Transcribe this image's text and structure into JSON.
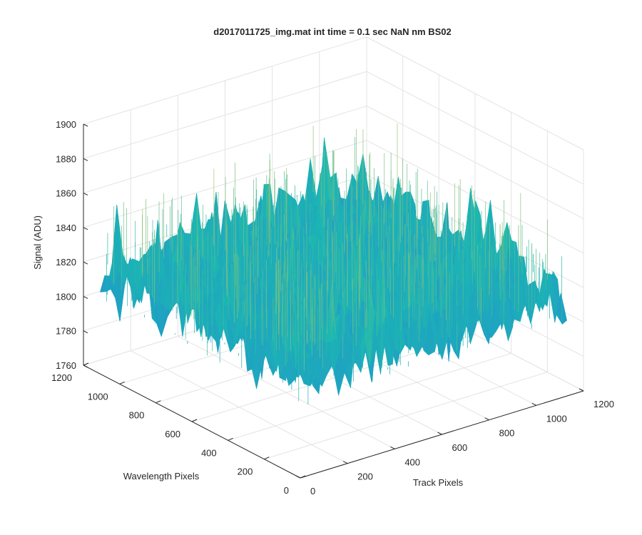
{
  "chart_data": {
    "type": "surface",
    "title": "d2017011725_img.mat int time = 0.1 sec  NaN nm BS02",
    "xlabel": "Track Pixels",
    "ylabel": "Wavelength Pixels",
    "zlabel": "Signal (ADU)",
    "xlim": [
      0,
      1200
    ],
    "ylim": [
      0,
      1200
    ],
    "zlim": [
      1760,
      1900
    ],
    "xticks": [
      "0",
      "200",
      "400",
      "600",
      "800",
      "1000",
      "1200"
    ],
    "yticks": [
      "0",
      "200",
      "400",
      "600",
      "800",
      "1000",
      "1200"
    ],
    "zticks": [
      "1760",
      "1780",
      "1800",
      "1820",
      "1840",
      "1860",
      "1880",
      "1900"
    ],
    "grid": true,
    "colormap": "parula",
    "colors": {
      "low": "#1f84d9",
      "mid": "#1db8b1",
      "high": "#e8c94e"
    },
    "surface_baseline": 1815,
    "surface_noise_range": [
      1775,
      1885
    ]
  }
}
